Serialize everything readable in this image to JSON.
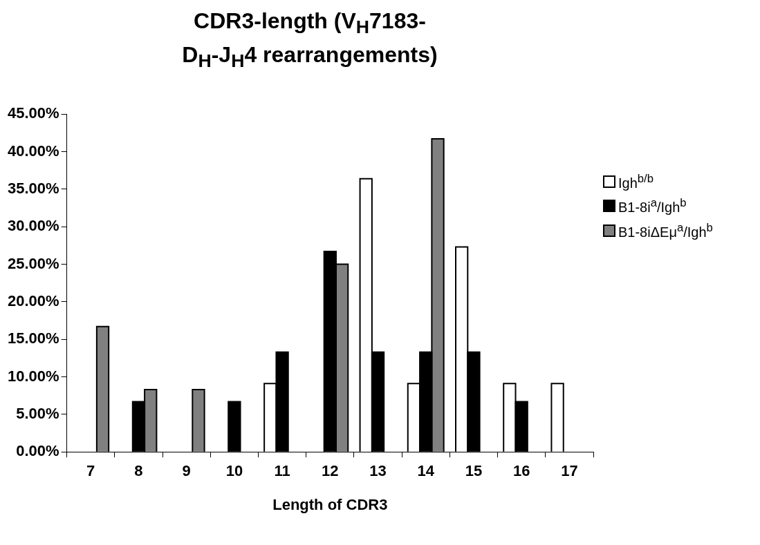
{
  "chart_data": {
    "type": "bar",
    "title": "CDR3-length (V$_{H}$7183-D$_{H}$-J$_{H}$4 rearrangements)",
    "xlabel": "Length of CDR3",
    "categories": [
      "7",
      "8",
      "9",
      "10",
      "11",
      "12",
      "13",
      "14",
      "15",
      "16",
      "17"
    ],
    "series": [
      {
        "name": "Igh$^{b/b}$",
        "color": "#ffffff",
        "values": [
          0,
          0,
          0,
          0,
          9.1,
          0,
          36.4,
          9.1,
          27.3,
          9.1,
          9.1
        ]
      },
      {
        "name": "B1-8i$^{a}$/Igh$^{b}$",
        "color": "#000000",
        "values": [
          0,
          6.7,
          0,
          6.7,
          13.3,
          26.7,
          13.3,
          13.3,
          13.3,
          6.7,
          0
        ]
      },
      {
        "name": "B1-8iΔEμ$^{a}$/Igh$^{b}$",
        "color": "#808080",
        "values": [
          16.7,
          8.3,
          8.3,
          0,
          0,
          25,
          0,
          41.7,
          0,
          0,
          0
        ]
      }
    ],
    "ylim": [
      0,
      45
    ],
    "yticks": [
      {
        "value": 0,
        "label": "0.00%"
      },
      {
        "value": 5,
        "label": "5.00%"
      },
      {
        "value": 10,
        "label": "10.00%"
      },
      {
        "value": 15,
        "label": "15.00%"
      },
      {
        "value": 20,
        "label": "20.00%"
      },
      {
        "value": 25,
        "label": "25.00%"
      },
      {
        "value": 30,
        "label": "30.00%"
      },
      {
        "value": 35,
        "label": "35.00%"
      },
      {
        "value": 40,
        "label": "40.00%"
      },
      {
        "value": 45,
        "label": "45.00%"
      }
    ],
    "grid": false,
    "legend": "right"
  }
}
